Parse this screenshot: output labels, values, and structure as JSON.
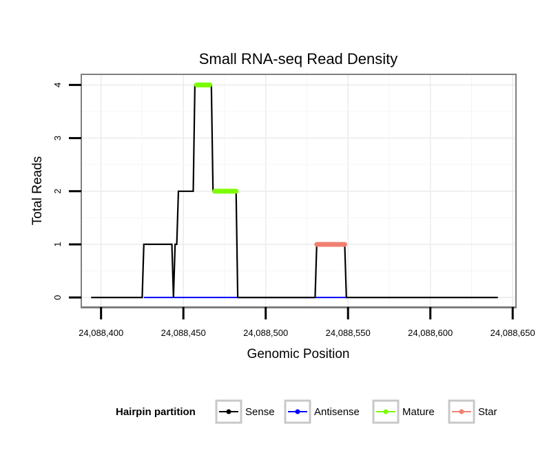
{
  "chart_data": {
    "type": "line",
    "title": "Small RNA-seq Read Density",
    "xlabel": "Genomic Position",
    "ylabel": "Total Reads",
    "xlim": [
      24088388,
      24088652
    ],
    "ylim": [
      -0.18,
      4.2
    ],
    "x_ticks": [
      24088400,
      24088450,
      24088500,
      24088550,
      24088600,
      24088650
    ],
    "x_tick_labels": [
      "24,088,400",
      "24,088,450",
      "24,088,500",
      "24,088,550",
      "24,088,600",
      "24,088,650"
    ],
    "y_ticks": [
      0,
      1,
      2,
      3,
      4
    ],
    "y_tick_labels": [
      "0",
      "1",
      "2",
      "3",
      "4"
    ],
    "grid": true,
    "legend": {
      "title": "Hairpin partition",
      "position": "bottom",
      "entries": [
        {
          "name": "Sense",
          "color": "#000000"
        },
        {
          "name": "Antisense",
          "color": "#0000ff"
        },
        {
          "name": "Mature",
          "color": "#7cfc00"
        },
        {
          "name": "Star",
          "color": "#f08070"
        }
      ]
    },
    "series": [
      {
        "name": "Sense",
        "color": "#000000",
        "points": [
          [
            24088394,
            0
          ],
          [
            24088425,
            0
          ],
          [
            24088426,
            1
          ],
          [
            24088443,
            1
          ],
          [
            24088444,
            0
          ],
          [
            24088445,
            1
          ],
          [
            24088446,
            1
          ],
          [
            24088447,
            2
          ],
          [
            24088456,
            2
          ],
          [
            24088457,
            4
          ],
          [
            24088467,
            4
          ],
          [
            24088468,
            2
          ],
          [
            24088482,
            2
          ],
          [
            24088483,
            0
          ],
          [
            24088530,
            0
          ],
          [
            24088531,
            1
          ],
          [
            24088548,
            1
          ],
          [
            24088549,
            0
          ],
          [
            24088641,
            0
          ]
        ]
      },
      {
        "name": "Antisense",
        "color": "#0000ff",
        "points": [
          [
            24088426,
            0
          ],
          [
            24088482,
            0
          ],
          [
            24088530,
            0
          ],
          [
            24088549,
            0
          ]
        ]
      },
      {
        "name": "Mature",
        "color": "#7cfc00",
        "segments": [
          [
            [
              24088458,
              4
            ],
            [
              24088466,
              4
            ]
          ],
          [
            [
              24088469,
              2
            ],
            [
              24088482,
              2
            ]
          ]
        ]
      },
      {
        "name": "Star",
        "color": "#f08070",
        "segments": [
          [
            [
              24088531,
              1
            ],
            [
              24088548,
              1
            ]
          ]
        ]
      }
    ]
  }
}
